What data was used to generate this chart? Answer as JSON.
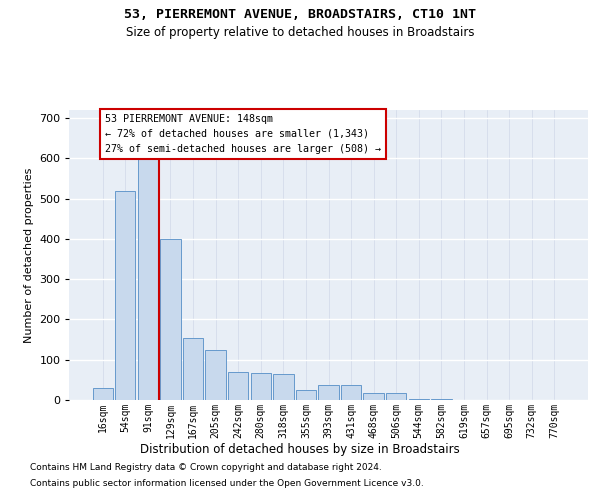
{
  "title": "53, PIERREMONT AVENUE, BROADSTAIRS, CT10 1NT",
  "subtitle": "Size of property relative to detached houses in Broadstairs",
  "xlabel": "Distribution of detached houses by size in Broadstairs",
  "ylabel": "Number of detached properties",
  "bar_color": "#c8d9ed",
  "bar_edge_color": "#6699cc",
  "background_color": "#e8eef6",
  "grid_color": "#d0d8e8",
  "bin_labels": [
    "16sqm",
    "54sqm",
    "91sqm",
    "129sqm",
    "167sqm",
    "205sqm",
    "242sqm",
    "280sqm",
    "318sqm",
    "355sqm",
    "393sqm",
    "431sqm",
    "468sqm",
    "506sqm",
    "544sqm",
    "582sqm",
    "619sqm",
    "657sqm",
    "695sqm",
    "732sqm",
    "770sqm"
  ],
  "bar_heights": [
    30,
    520,
    635,
    400,
    155,
    125,
    70,
    68,
    65,
    25,
    38,
    38,
    17,
    17,
    3,
    3,
    0,
    0,
    0,
    0,
    0
  ],
  "vline_color": "#cc0000",
  "vline_pos": 2.5,
  "ylim": [
    0,
    720
  ],
  "yticks": [
    0,
    100,
    200,
    300,
    400,
    500,
    600,
    700
  ],
  "annotation_line1": "53 PIERREMONT AVENUE: 148sqm",
  "annotation_line2": "← 72% of detached houses are smaller (1,343)",
  "annotation_line3": "27% of semi-detached houses are larger (508) →",
  "footnote1": "Contains HM Land Registry data © Crown copyright and database right 2024.",
  "footnote2": "Contains public sector information licensed under the Open Government Licence v3.0."
}
